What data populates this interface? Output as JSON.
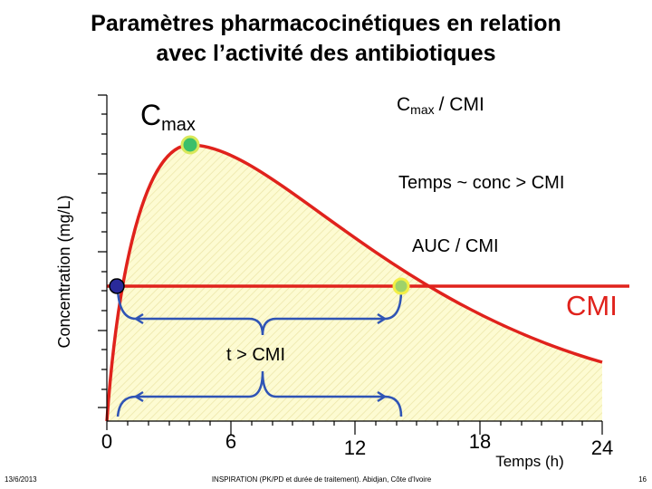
{
  "title_lines": [
    "Paramètres pharmacocinétiques en relation",
    "avec l’activité des antibiotiques"
  ],
  "y_axis_label": "Concentration (mg/L)",
  "x_axis_label": "Temps (h)",
  "x_tick_labels": [
    "0",
    "6",
    "12",
    "18",
    "24"
  ],
  "cmax_label": {
    "main": "C",
    "sub": "max"
  },
  "cmax_cmi_label": {
    "main": "C",
    "sub": "max",
    "rest": "/ CMI"
  },
  "annotations": {
    "time_over": "Temps ~ conc > CMI",
    "auc": "AUC / CMI",
    "cmi": "CMI",
    "t_cmi": "t > CMI"
  },
  "footer": {
    "date": "13/6/2013",
    "source": "INSPIRATION (PK/PD et durée de traitement). Abidjan, Côte d'Ivoire",
    "page": "16"
  }
}
